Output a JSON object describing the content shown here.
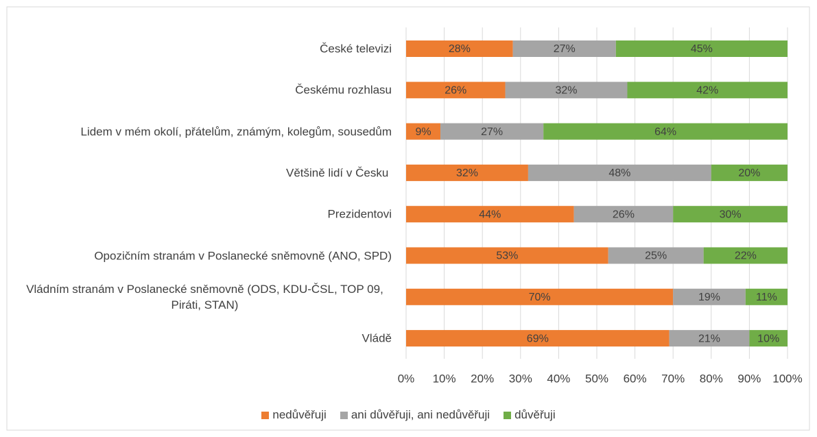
{
  "chart_data": {
    "type": "stacked_barh",
    "categories": [
      "České televizi",
      "Českému rozhlasu",
      "Lidem v mém okolí, přátelům, známým, kolegům, sousedům",
      "Většině lidí v Česku ",
      "Prezidentovi",
      "Opozičním stranám v Poslanecké sněmovně (ANO, SPD)",
      "Vládním stranám v Poslanecké sněmovně (ODS, KDU-ČSL, TOP 09, Piráti, STAN)",
      "Vládě"
    ],
    "series": [
      {
        "name": "nedůvěřuji",
        "color": "#ed7d31",
        "values": [
          28,
          26,
          9,
          32,
          44,
          53,
          70,
          69
        ],
        "value_labels": [
          "28%",
          "26%",
          "9%",
          "32%",
          "44%",
          "53%",
          "70%",
          "69%"
        ]
      },
      {
        "name": "ani důvěřuji, ani nedůvěřuji",
        "color": "#a5a5a5",
        "values": [
          27,
          32,
          27,
          48,
          26,
          25,
          19,
          21
        ],
        "value_labels": [
          "27%",
          "32%",
          "27%",
          "48%",
          "26%",
          "25%",
          "19%",
          "21%"
        ]
      },
      {
        "name": "důvěřuji",
        "color": "#70ad47",
        "values": [
          45,
          42,
          64,
          20,
          30,
          22,
          11,
          10
        ],
        "value_labels": [
          "45%",
          "42%",
          "64%",
          "20%",
          "30%",
          "22%",
          "11%",
          "10%"
        ]
      }
    ],
    "xlim": [
      0,
      100
    ],
    "xticks": [
      {
        "value": 0,
        "label": "0%"
      },
      {
        "value": 10,
        "label": "10%"
      },
      {
        "value": 20,
        "label": "20%"
      },
      {
        "value": 30,
        "label": "30%"
      },
      {
        "value": 40,
        "label": "40%"
      },
      {
        "value": 50,
        "label": "50%"
      },
      {
        "value": 60,
        "label": "60%"
      },
      {
        "value": 70,
        "label": "70%"
      },
      {
        "value": 80,
        "label": "80%"
      },
      {
        "value": 90,
        "label": "90%"
      },
      {
        "value": 100,
        "label": "100%"
      }
    ],
    "grid": true,
    "legend": "bottom"
  }
}
